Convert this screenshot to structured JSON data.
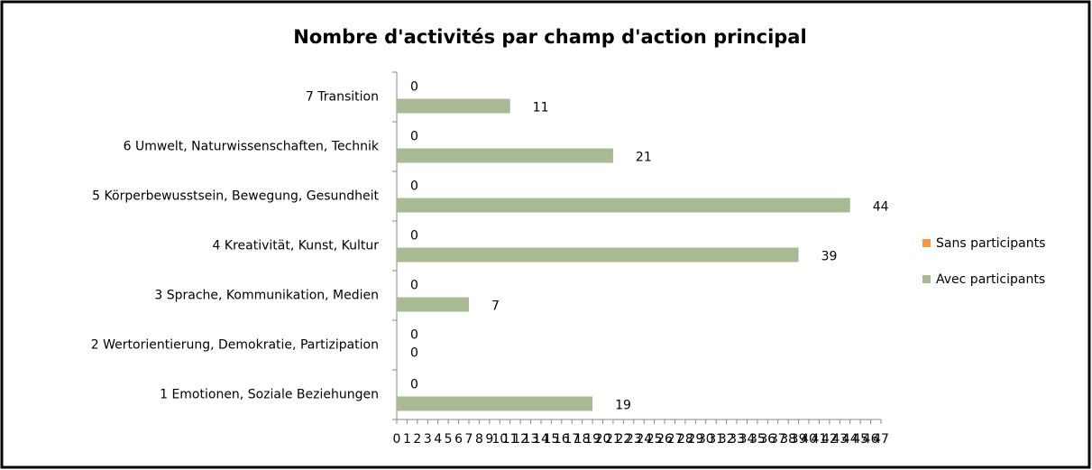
{
  "chart_data": {
    "type": "barh",
    "title": "Nombre d'activités par champ d'action principal",
    "categories": [
      "1 Emotionen, Soziale Beziehungen",
      "2 Wertorientierung, Demokratie,  Partizipation",
      "3 Sprache, Kommunikation, Medien",
      "4 Kreativität, Kunst, Kultur",
      "5 Körperbewusstsein, Bewegung, Gesundheit",
      "6 Umwelt, Naturwissenschaften, Technik",
      "7 Transition"
    ],
    "series": [
      {
        "name": "Sans participants",
        "color": "#f79646",
        "values": [
          0,
          0,
          0,
          0,
          0,
          0,
          0
        ]
      },
      {
        "name": "Avec participants",
        "color": "#a9b994",
        "values": [
          19,
          0,
          7,
          39,
          44,
          21,
          11
        ]
      }
    ],
    "xlim": [
      0,
      47
    ],
    "xticks": [
      0,
      1,
      2,
      3,
      4,
      5,
      6,
      7,
      8,
      9,
      10,
      11,
      12,
      13,
      14,
      15,
      16,
      17,
      18,
      19,
      20,
      21,
      22,
      23,
      24,
      25,
      26,
      27,
      28,
      29,
      30,
      31,
      32,
      33,
      34,
      35,
      36,
      37,
      38,
      39,
      40,
      41,
      42,
      43,
      44,
      45,
      46,
      47
    ],
    "legend": "right"
  }
}
